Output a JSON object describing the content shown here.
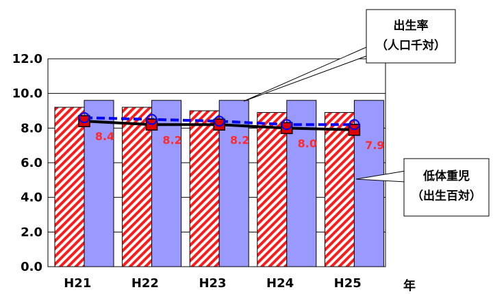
{
  "chart_data": {
    "type": "bar",
    "categories": [
      "H21",
      "H22",
      "H23",
      "H24",
      "H25"
    ],
    "xlabel": "年",
    "ylim": [
      0,
      12
    ],
    "yticks": [
      "0.0",
      "2.0",
      "4.0",
      "6.0",
      "8.0",
      "10.0",
      "12.0"
    ],
    "grid": true,
    "series": [
      {
        "name": "低体重児（出生百対）",
        "kind": "bar",
        "pattern": "red-diagonal-hatch",
        "values": [
          9.2,
          9.2,
          9.0,
          8.9,
          8.9
        ]
      },
      {
        "name": "出生率（人口千対）",
        "kind": "bar",
        "color": "#9999ff",
        "values": [
          9.6,
          9.6,
          9.6,
          9.6,
          9.6
        ]
      },
      {
        "kind": "line",
        "style": "solid",
        "color": "#000000",
        "marker": "square",
        "marker_color": "#dd0000",
        "values": [
          8.4,
          8.2,
          8.2,
          8.0,
          7.9
        ],
        "labels": [
          "8.4",
          "8.2",
          "8.2",
          "8.0",
          "7.9"
        ]
      },
      {
        "kind": "line",
        "style": "dashed",
        "color": "#0000ff",
        "marker": "circle",
        "values": [
          8.6,
          8.5,
          8.4,
          8.2,
          8.2
        ]
      }
    ],
    "callouts": [
      {
        "line1": "出生率",
        "line2": "（人口千対）"
      },
      {
        "line1": "低体重児",
        "line2": "（出生百対）"
      }
    ]
  }
}
